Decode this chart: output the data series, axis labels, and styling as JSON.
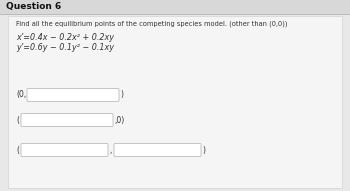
{
  "title": "Question 6",
  "instruction": "Find all the equilibrium points of the competing species model. (other than (0,0))",
  "eq1": "x’=0.4x − 0.2x² + 0.2xy",
  "eq2": "y’=0.6y − 0.1y² − 0.1xy",
  "box1_prefix": "(0,",
  "box1_suffix": ")",
  "box2_prefix": "(",
  "box2_suffix": ",0)",
  "box3_prefix": "(",
  "box3_mid": ",",
  "box3_suffix": ")",
  "bg_color": "#e8e8e8",
  "content_color": "#f5f5f5",
  "box_fill": "#ffffff",
  "box_edge": "#bbbbbb",
  "text_color": "#333333",
  "title_color": "#111111",
  "title_bg": "#d8d8d8"
}
